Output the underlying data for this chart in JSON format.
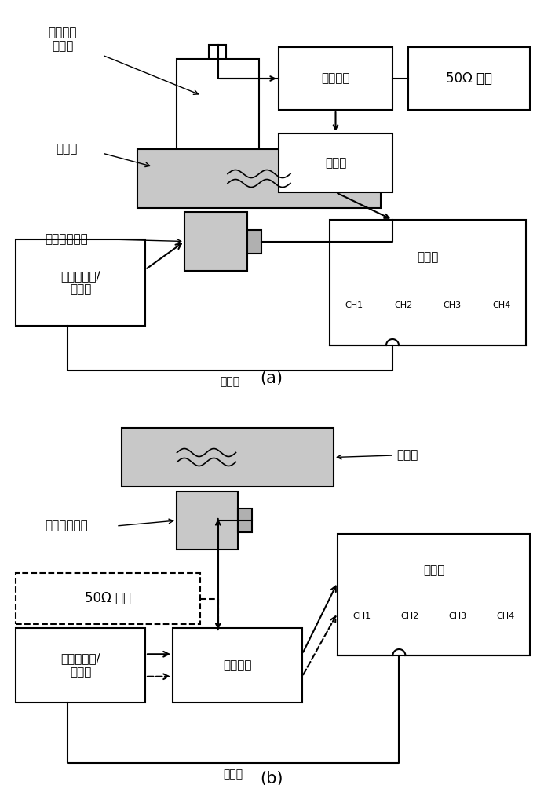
{
  "title_a": "(a)",
  "title_b": "(b)",
  "bg_color": "#ffffff",
  "gray_color": "#c8c8c8",
  "gray_dark": "#b0b0b0",
  "labels": {
    "air_transducer": "空气耦合\n换能器",
    "al_sample_a": "铝试样",
    "contact_transducer_a": "接触式换能器",
    "current_probe_a": "电流探针",
    "resistor_a": "50Ω 电阻",
    "amplifier": "放大器",
    "pulse_gen_a": "脉冲发生器/\n接收器",
    "sync_line_a": "同步线",
    "al_sample_b": "铝试样",
    "contact_transducer_b": "接触式换能器",
    "resistor_b": "50Ω 电阻",
    "pulse_gen_b": "脉冲发生器/\n接收器",
    "current_probe_b": "电流探针",
    "sync_line_b": "同步线",
    "ch_labels": [
      "CH1",
      "CH2",
      "CH3",
      "CH4"
    ]
  }
}
